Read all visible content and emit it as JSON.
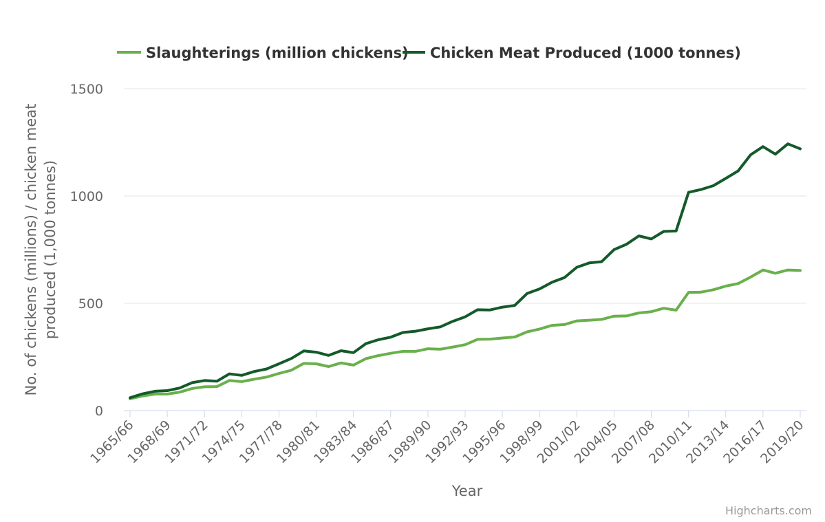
{
  "chart_data": {
    "type": "line",
    "xlabel": "Year",
    "ylabel_lines": [
      "No. of chickens (millions) / chicken meat",
      "produced (1,000 tonnes)"
    ],
    "ylim": [
      0,
      1500
    ],
    "yticks": [
      0,
      500,
      1000,
      1500
    ],
    "grid": true,
    "legend_position": "top-center",
    "credits": "Highcharts.com",
    "x": [
      "1965/66",
      "1966/67",
      "1967/68",
      "1968/69",
      "1969/70",
      "1970/71",
      "1971/72",
      "1972/73",
      "1973/74",
      "1974/75",
      "1975/76",
      "1976/77",
      "1977/78",
      "1978/79",
      "1979/80",
      "1980/81",
      "1981/82",
      "1982/83",
      "1983/84",
      "1984/85",
      "1985/86",
      "1986/87",
      "1987/88",
      "1988/89",
      "1989/90",
      "1990/91",
      "1991/92",
      "1992/93",
      "1993/94",
      "1994/95",
      "1995/96",
      "1996/97",
      "1997/98",
      "1998/99",
      "1999/00",
      "2000/01",
      "2001/02",
      "2002/03",
      "2003/04",
      "2004/05",
      "2005/06",
      "2006/07",
      "2007/08",
      "2008/09",
      "2009/10",
      "2010/11",
      "2011/12",
      "2012/13",
      "2013/14",
      "2014/15",
      "2015/16",
      "2016/17",
      "2017/18",
      "2018/19",
      "2019/20"
    ],
    "xtick_labels": [
      "1965/66",
      "1968/69",
      "1971/72",
      "1974/75",
      "1977/78",
      "1980/81",
      "1983/84",
      "1986/87",
      "1989/90",
      "1992/93",
      "1995/96",
      "1998/99",
      "2001/02",
      "2004/05",
      "2007/08",
      "2010/11",
      "2013/14",
      "2016/17",
      "2019/20"
    ],
    "series": [
      {
        "name": "Slaughterings (million chickens)",
        "color": "#6ab04c",
        "values": [
          55,
          68,
          77,
          77,
          86,
          103,
          111,
          112,
          140,
          135,
          146,
          156,
          173,
          188,
          220,
          218,
          205,
          222,
          212,
          242,
          256,
          267,
          276,
          276,
          288,
          286,
          296,
          307,
          332,
          333,
          338,
          343,
          367,
          380,
          397,
          401,
          418,
          421,
          425,
          440,
          441,
          455,
          461,
          477,
          468,
          551,
          552,
          563,
          580,
          592,
          622,
          655,
          640,
          655,
          653
        ]
      },
      {
        "name": "Chicken Meat Produced (1000 tonnes)",
        "color": "#145a2a",
        "values": [
          60,
          78,
          90,
          93,
          105,
          130,
          140,
          137,
          171,
          164,
          182,
          194,
          218,
          243,
          278,
          272,
          257,
          279,
          270,
          312,
          330,
          342,
          364,
          370,
          381,
          390,
          416,
          437,
          470,
          469,
          482,
          490,
          546,
          567,
          598,
          620,
          668,
          688,
          694,
          750,
          775,
          814,
          800,
          835,
          837,
          1017,
          1030,
          1048,
          1082,
          1117,
          1192,
          1230,
          1195,
          1243,
          1220
        ]
      }
    ]
  }
}
